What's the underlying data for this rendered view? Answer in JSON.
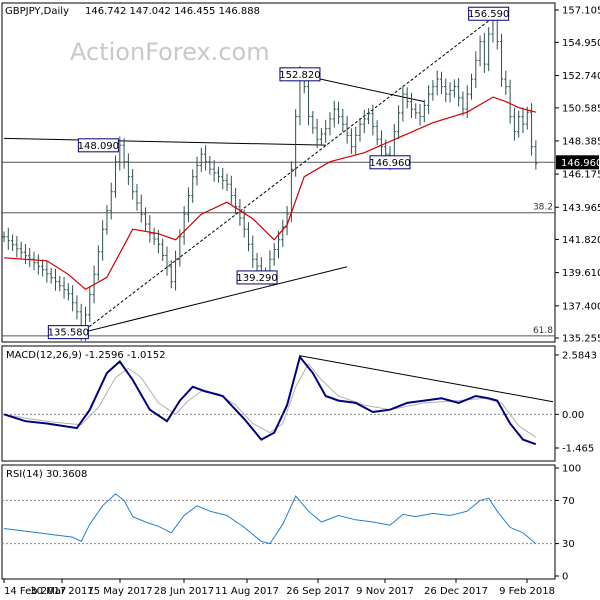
{
  "header": {
    "symbol": "GBPJPY,Daily",
    "ohlc": "146.742 147.042 146.455 146.888"
  },
  "watermark": "ActionForex.com",
  "colors": {
    "candle": "#2f4f4f",
    "ma": "#d00000",
    "macd": "#000080",
    "signal": "#b0b0b0",
    "rsi": "#1e7fd6",
    "trend": "#000000",
    "box_border": "#000080",
    "price_box": "#000000"
  },
  "chart_data": [
    {
      "type": "candlestick",
      "title": "GBPJPY,Daily",
      "price_axis": {
        "ticks": [
          "157.105",
          "154.950",
          "152.740",
          "150.585",
          "148.385",
          "146.175",
          "143.965",
          "141.820",
          "139.610",
          "137.400",
          "135.255"
        ],
        "ylim": [
          135.255,
          157.105
        ]
      },
      "current_price": "146.960",
      "x_axis_labels": [
        "14 Feb 2017",
        "30 Mar 2017",
        "15 May 2017",
        "28 Jun 2017",
        "11 Aug 2017",
        "26 Sep 2017",
        "9 Nov 2017",
        "26 Dec 2017",
        "9 Feb 2018"
      ],
      "price_path": [
        {
          "x": 0,
          "y": 142.0
        },
        {
          "x": 3,
          "y": 141.2
        },
        {
          "x": 6,
          "y": 140.5
        },
        {
          "x": 9,
          "y": 139.8
        },
        {
          "x": 12,
          "y": 139.0
        },
        {
          "x": 15,
          "y": 138.2
        },
        {
          "x": 17,
          "y": 137.0
        },
        {
          "x": 18,
          "y": 135.6
        },
        {
          "x": 19,
          "y": 136.8
        },
        {
          "x": 21,
          "y": 139.5
        },
        {
          "x": 23,
          "y": 142.5
        },
        {
          "x": 25,
          "y": 145.0
        },
        {
          "x": 26,
          "y": 147.0
        },
        {
          "x": 27,
          "y": 148.1
        },
        {
          "x": 28,
          "y": 147.0
        },
        {
          "x": 30,
          "y": 145.0
        },
        {
          "x": 32,
          "y": 143.5
        },
        {
          "x": 34,
          "y": 142.2
        },
        {
          "x": 36,
          "y": 141.5
        },
        {
          "x": 38,
          "y": 140.0
        },
        {
          "x": 39,
          "y": 139.0
        },
        {
          "x": 40,
          "y": 140.5
        },
        {
          "x": 42,
          "y": 143.5
        },
        {
          "x": 44,
          "y": 146.0
        },
        {
          "x": 46,
          "y": 147.5
        },
        {
          "x": 48,
          "y": 146.5
        },
        {
          "x": 50,
          "y": 146.0
        },
        {
          "x": 52,
          "y": 145.5
        },
        {
          "x": 54,
          "y": 144.0
        },
        {
          "x": 56,
          "y": 142.5
        },
        {
          "x": 58,
          "y": 140.5
        },
        {
          "x": 60,
          "y": 139.6
        },
        {
          "x": 61,
          "y": 139.3
        },
        {
          "x": 62,
          "y": 140.5
        },
        {
          "x": 64,
          "y": 141.8
        },
        {
          "x": 66,
          "y": 143.5
        },
        {
          "x": 67,
          "y": 146.5
        },
        {
          "x": 68,
          "y": 150.0
        },
        {
          "x": 69,
          "y": 152.8
        },
        {
          "x": 70,
          "y": 152.0
        },
        {
          "x": 71,
          "y": 150.0
        },
        {
          "x": 73,
          "y": 148.5
        },
        {
          "x": 75,
          "y": 149.2
        },
        {
          "x": 77,
          "y": 150.5
        },
        {
          "x": 79,
          "y": 149.5
        },
        {
          "x": 81,
          "y": 148.0
        },
        {
          "x": 83,
          "y": 149.5
        },
        {
          "x": 85,
          "y": 150.2
        },
        {
          "x": 87,
          "y": 148.5
        },
        {
          "x": 89,
          "y": 147.5
        },
        {
          "x": 90,
          "y": 147.0
        },
        {
          "x": 91,
          "y": 149.0
        },
        {
          "x": 93,
          "y": 151.5
        },
        {
          "x": 95,
          "y": 150.5
        },
        {
          "x": 97,
          "y": 150.0
        },
        {
          "x": 99,
          "y": 151.5
        },
        {
          "x": 101,
          "y": 152.5
        },
        {
          "x": 103,
          "y": 151.5
        },
        {
          "x": 105,
          "y": 152.0
        },
        {
          "x": 107,
          "y": 150.5
        },
        {
          "x": 109,
          "y": 152.5
        },
        {
          "x": 111,
          "y": 155.0
        },
        {
          "x": 112,
          "y": 153.5
        },
        {
          "x": 113,
          "y": 155.5
        },
        {
          "x": 114,
          "y": 156.6
        },
        {
          "x": 115,
          "y": 155.0
        },
        {
          "x": 116,
          "y": 152.5
        },
        {
          "x": 117,
          "y": 152.0
        },
        {
          "x": 118,
          "y": 150.0
        },
        {
          "x": 119,
          "y": 149.0
        },
        {
          "x": 120,
          "y": 150.0
        },
        {
          "x": 121,
          "y": 149.5
        },
        {
          "x": 122,
          "y": 150.3
        },
        {
          "x": 123,
          "y": 148.0
        },
        {
          "x": 124,
          "y": 146.9
        }
      ],
      "moving_average": [
        {
          "x": 0,
          "y": 140.6
        },
        {
          "x": 10,
          "y": 140.4
        },
        {
          "x": 15,
          "y": 139.5
        },
        {
          "x": 19,
          "y": 138.5
        },
        {
          "x": 24,
          "y": 139.3
        },
        {
          "x": 30,
          "y": 142.5
        },
        {
          "x": 36,
          "y": 142.2
        },
        {
          "x": 40,
          "y": 141.8
        },
        {
          "x": 46,
          "y": 143.5
        },
        {
          "x": 52,
          "y": 144.3
        },
        {
          "x": 58,
          "y": 143.2
        },
        {
          "x": 63,
          "y": 141.8
        },
        {
          "x": 66,
          "y": 142.8
        },
        {
          "x": 70,
          "y": 146.0
        },
        {
          "x": 76,
          "y": 147.0
        },
        {
          "x": 84,
          "y": 147.6
        },
        {
          "x": 92,
          "y": 148.6
        },
        {
          "x": 100,
          "y": 149.6
        },
        {
          "x": 108,
          "y": 150.3
        },
        {
          "x": 114,
          "y": 151.3
        },
        {
          "x": 117,
          "y": 151.0
        },
        {
          "x": 120,
          "y": 150.6
        },
        {
          "x": 124,
          "y": 150.3
        }
      ],
      "levels": [
        {
          "value": 146.96,
          "label": "146.960"
        },
        {
          "value": 143.6,
          "label": "38.2"
        },
        {
          "value": 135.4,
          "label": "61.8"
        }
      ],
      "trendlines": [
        {
          "from": {
            "x": 0,
            "y": 148.55
          },
          "to": {
            "x": 75,
            "y": 148.1
          }
        },
        {
          "from": {
            "x": 18,
            "y": 135.6
          },
          "to": {
            "x": 80,
            "y": 140.0
          }
        },
        {
          "from": {
            "x": 18,
            "y": 135.6
          },
          "to": {
            "x": 114,
            "y": 156.6
          }
        },
        {
          "from": {
            "x": 69,
            "y": 152.8
          },
          "to": {
            "x": 98,
            "y": 151.0
          }
        }
      ],
      "annotations": [
        {
          "label": "148.090",
          "x": 22,
          "y": 148.09
        },
        {
          "label": "135.580",
          "x": 15,
          "y": 135.58
        },
        {
          "label": "139.290",
          "x": 59,
          "y": 139.29
        },
        {
          "label": "152.820",
          "x": 69,
          "y": 152.82
        },
        {
          "label": "146.960",
          "x": 90,
          "y": 146.96
        },
        {
          "label": "156.590",
          "x": 113,
          "y": 156.59
        }
      ]
    },
    {
      "type": "line",
      "title": "MACD(12,26,9) -1.2596 -1.0152",
      "ticks": [
        "2.5843",
        "0.00",
        "-1.465"
      ],
      "ylim": [
        -1.9,
        2.8
      ],
      "macd": [
        {
          "x": 0,
          "y": 0.0
        },
        {
          "x": 5,
          "y": -0.3
        },
        {
          "x": 10,
          "y": -0.4
        },
        {
          "x": 17,
          "y": -0.6
        },
        {
          "x": 20,
          "y": 0.2
        },
        {
          "x": 24,
          "y": 1.8
        },
        {
          "x": 27,
          "y": 2.3
        },
        {
          "x": 30,
          "y": 1.5
        },
        {
          "x": 34,
          "y": 0.2
        },
        {
          "x": 38,
          "y": -0.3
        },
        {
          "x": 41,
          "y": 0.6
        },
        {
          "x": 44,
          "y": 1.2
        },
        {
          "x": 47,
          "y": 1.0
        },
        {
          "x": 51,
          "y": 0.8
        },
        {
          "x": 56,
          "y": -0.2
        },
        {
          "x": 60,
          "y": -1.1
        },
        {
          "x": 63,
          "y": -0.8
        },
        {
          "x": 66,
          "y": 0.4
        },
        {
          "x": 69,
          "y": 2.5
        },
        {
          "x": 72,
          "y": 1.8
        },
        {
          "x": 75,
          "y": 0.8
        },
        {
          "x": 78,
          "y": 0.6
        },
        {
          "x": 82,
          "y": 0.5
        },
        {
          "x": 86,
          "y": 0.1
        },
        {
          "x": 90,
          "y": 0.2
        },
        {
          "x": 94,
          "y": 0.5
        },
        {
          "x": 98,
          "y": 0.6
        },
        {
          "x": 102,
          "y": 0.7
        },
        {
          "x": 106,
          "y": 0.5
        },
        {
          "x": 110,
          "y": 0.8
        },
        {
          "x": 113,
          "y": 0.7
        },
        {
          "x": 115,
          "y": 0.6
        },
        {
          "x": 118,
          "y": -0.4
        },
        {
          "x": 121,
          "y": -1.1
        },
        {
          "x": 124,
          "y": -1.3
        }
      ],
      "signal": [
        {
          "x": 0,
          "y": 0.0
        },
        {
          "x": 6,
          "y": -0.2
        },
        {
          "x": 12,
          "y": -0.35
        },
        {
          "x": 18,
          "y": -0.45
        },
        {
          "x": 22,
          "y": 0.3
        },
        {
          "x": 26,
          "y": 1.6
        },
        {
          "x": 29,
          "y": 2.0
        },
        {
          "x": 32,
          "y": 1.6
        },
        {
          "x": 36,
          "y": 0.5
        },
        {
          "x": 40,
          "y": 0.0
        },
        {
          "x": 43,
          "y": 0.6
        },
        {
          "x": 46,
          "y": 1.0
        },
        {
          "x": 50,
          "y": 0.9
        },
        {
          "x": 54,
          "y": 0.4
        },
        {
          "x": 58,
          "y": -0.4
        },
        {
          "x": 62,
          "y": -0.8
        },
        {
          "x": 65,
          "y": -0.4
        },
        {
          "x": 68,
          "y": 1.2
        },
        {
          "x": 71,
          "y": 2.2
        },
        {
          "x": 74,
          "y": 1.5
        },
        {
          "x": 78,
          "y": 0.8
        },
        {
          "x": 84,
          "y": 0.4
        },
        {
          "x": 90,
          "y": 0.2
        },
        {
          "x": 98,
          "y": 0.5
        },
        {
          "x": 106,
          "y": 0.6
        },
        {
          "x": 112,
          "y": 0.7
        },
        {
          "x": 116,
          "y": 0.5
        },
        {
          "x": 120,
          "y": -0.5
        },
        {
          "x": 124,
          "y": -1.0
        }
      ],
      "trendline": {
        "from": {
          "x": 69,
          "y": 2.55
        },
        "to": {
          "x": 128,
          "y": 0.55
        }
      }
    },
    {
      "type": "line",
      "title": "RSI(14) 30.3608",
      "ticks": [
        "100",
        "70",
        "30",
        "0"
      ],
      "ylim": [
        0,
        100
      ],
      "levels": [
        70,
        30
      ],
      "rsi": [
        {
          "x": 0,
          "y": 44
        },
        {
          "x": 4,
          "y": 42
        },
        {
          "x": 8,
          "y": 40
        },
        {
          "x": 12,
          "y": 38
        },
        {
          "x": 16,
          "y": 36
        },
        {
          "x": 18,
          "y": 32
        },
        {
          "x": 20,
          "y": 48
        },
        {
          "x": 23,
          "y": 65
        },
        {
          "x": 26,
          "y": 76
        },
        {
          "x": 28,
          "y": 70
        },
        {
          "x": 30,
          "y": 55
        },
        {
          "x": 33,
          "y": 50
        },
        {
          "x": 36,
          "y": 46
        },
        {
          "x": 39,
          "y": 40
        },
        {
          "x": 42,
          "y": 56
        },
        {
          "x": 45,
          "y": 65
        },
        {
          "x": 48,
          "y": 60
        },
        {
          "x": 52,
          "y": 56
        },
        {
          "x": 56,
          "y": 45
        },
        {
          "x": 60,
          "y": 32
        },
        {
          "x": 62,
          "y": 30
        },
        {
          "x": 65,
          "y": 48
        },
        {
          "x": 68,
          "y": 74
        },
        {
          "x": 71,
          "y": 60
        },
        {
          "x": 74,
          "y": 50
        },
        {
          "x": 78,
          "y": 56
        },
        {
          "x": 82,
          "y": 52
        },
        {
          "x": 86,
          "y": 50
        },
        {
          "x": 90,
          "y": 47
        },
        {
          "x": 93,
          "y": 57
        },
        {
          "x": 96,
          "y": 55
        },
        {
          "x": 100,
          "y": 58
        },
        {
          "x": 104,
          "y": 56
        },
        {
          "x": 108,
          "y": 60
        },
        {
          "x": 111,
          "y": 70
        },
        {
          "x": 113,
          "y": 72
        },
        {
          "x": 115,
          "y": 60
        },
        {
          "x": 118,
          "y": 45
        },
        {
          "x": 121,
          "y": 40
        },
        {
          "x": 124,
          "y": 30
        }
      ]
    }
  ]
}
